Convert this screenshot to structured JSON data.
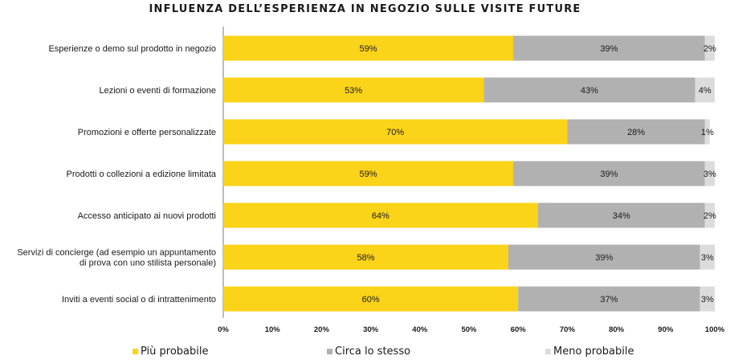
{
  "chart_data": {
    "type": "bar",
    "orientation": "horizontal",
    "stacked": true,
    "title": "INFLUENZA DELL’ESPERIENZA IN NEGOZIO SULLE VISITE FUTURE",
    "categories": [
      [
        "Esperienze o demo sul prodotto in negozio"
      ],
      [
        "Lezioni o eventi di formazione"
      ],
      [
        "Promozioni e offerte personalizzate"
      ],
      [
        "Prodotti o collezioni a edizione limitata"
      ],
      [
        "Accesso anticipato ai nuovi prodotti"
      ],
      [
        "Servizi di concierge (ad esempio un appuntamento",
        "di prova con uno stilista personale)"
      ],
      [
        "Inviti a eventi social o di intrattenimento"
      ]
    ],
    "series": [
      {
        "name": "Più probabile",
        "color": "#FBD319",
        "values": [
          59,
          53,
          70,
          59,
          64,
          58,
          60
        ]
      },
      {
        "name": "Circa lo stesso",
        "color": "#B2B1B1",
        "values": [
          39,
          43,
          28,
          39,
          34,
          39,
          37
        ]
      },
      {
        "name": "Meno probabile",
        "color": "#DCDCDC",
        "values": [
          2,
          4,
          1,
          3,
          2,
          3,
          3
        ]
      }
    ],
    "value_suffix": "%",
    "xlim": [
      0,
      100
    ],
    "xticks": [
      "0%",
      "10%",
      "20%",
      "30%",
      "40%",
      "50%",
      "60%",
      "70%",
      "80%",
      "90%",
      "100%"
    ],
    "grid": false,
    "legend_position": "bottom"
  }
}
